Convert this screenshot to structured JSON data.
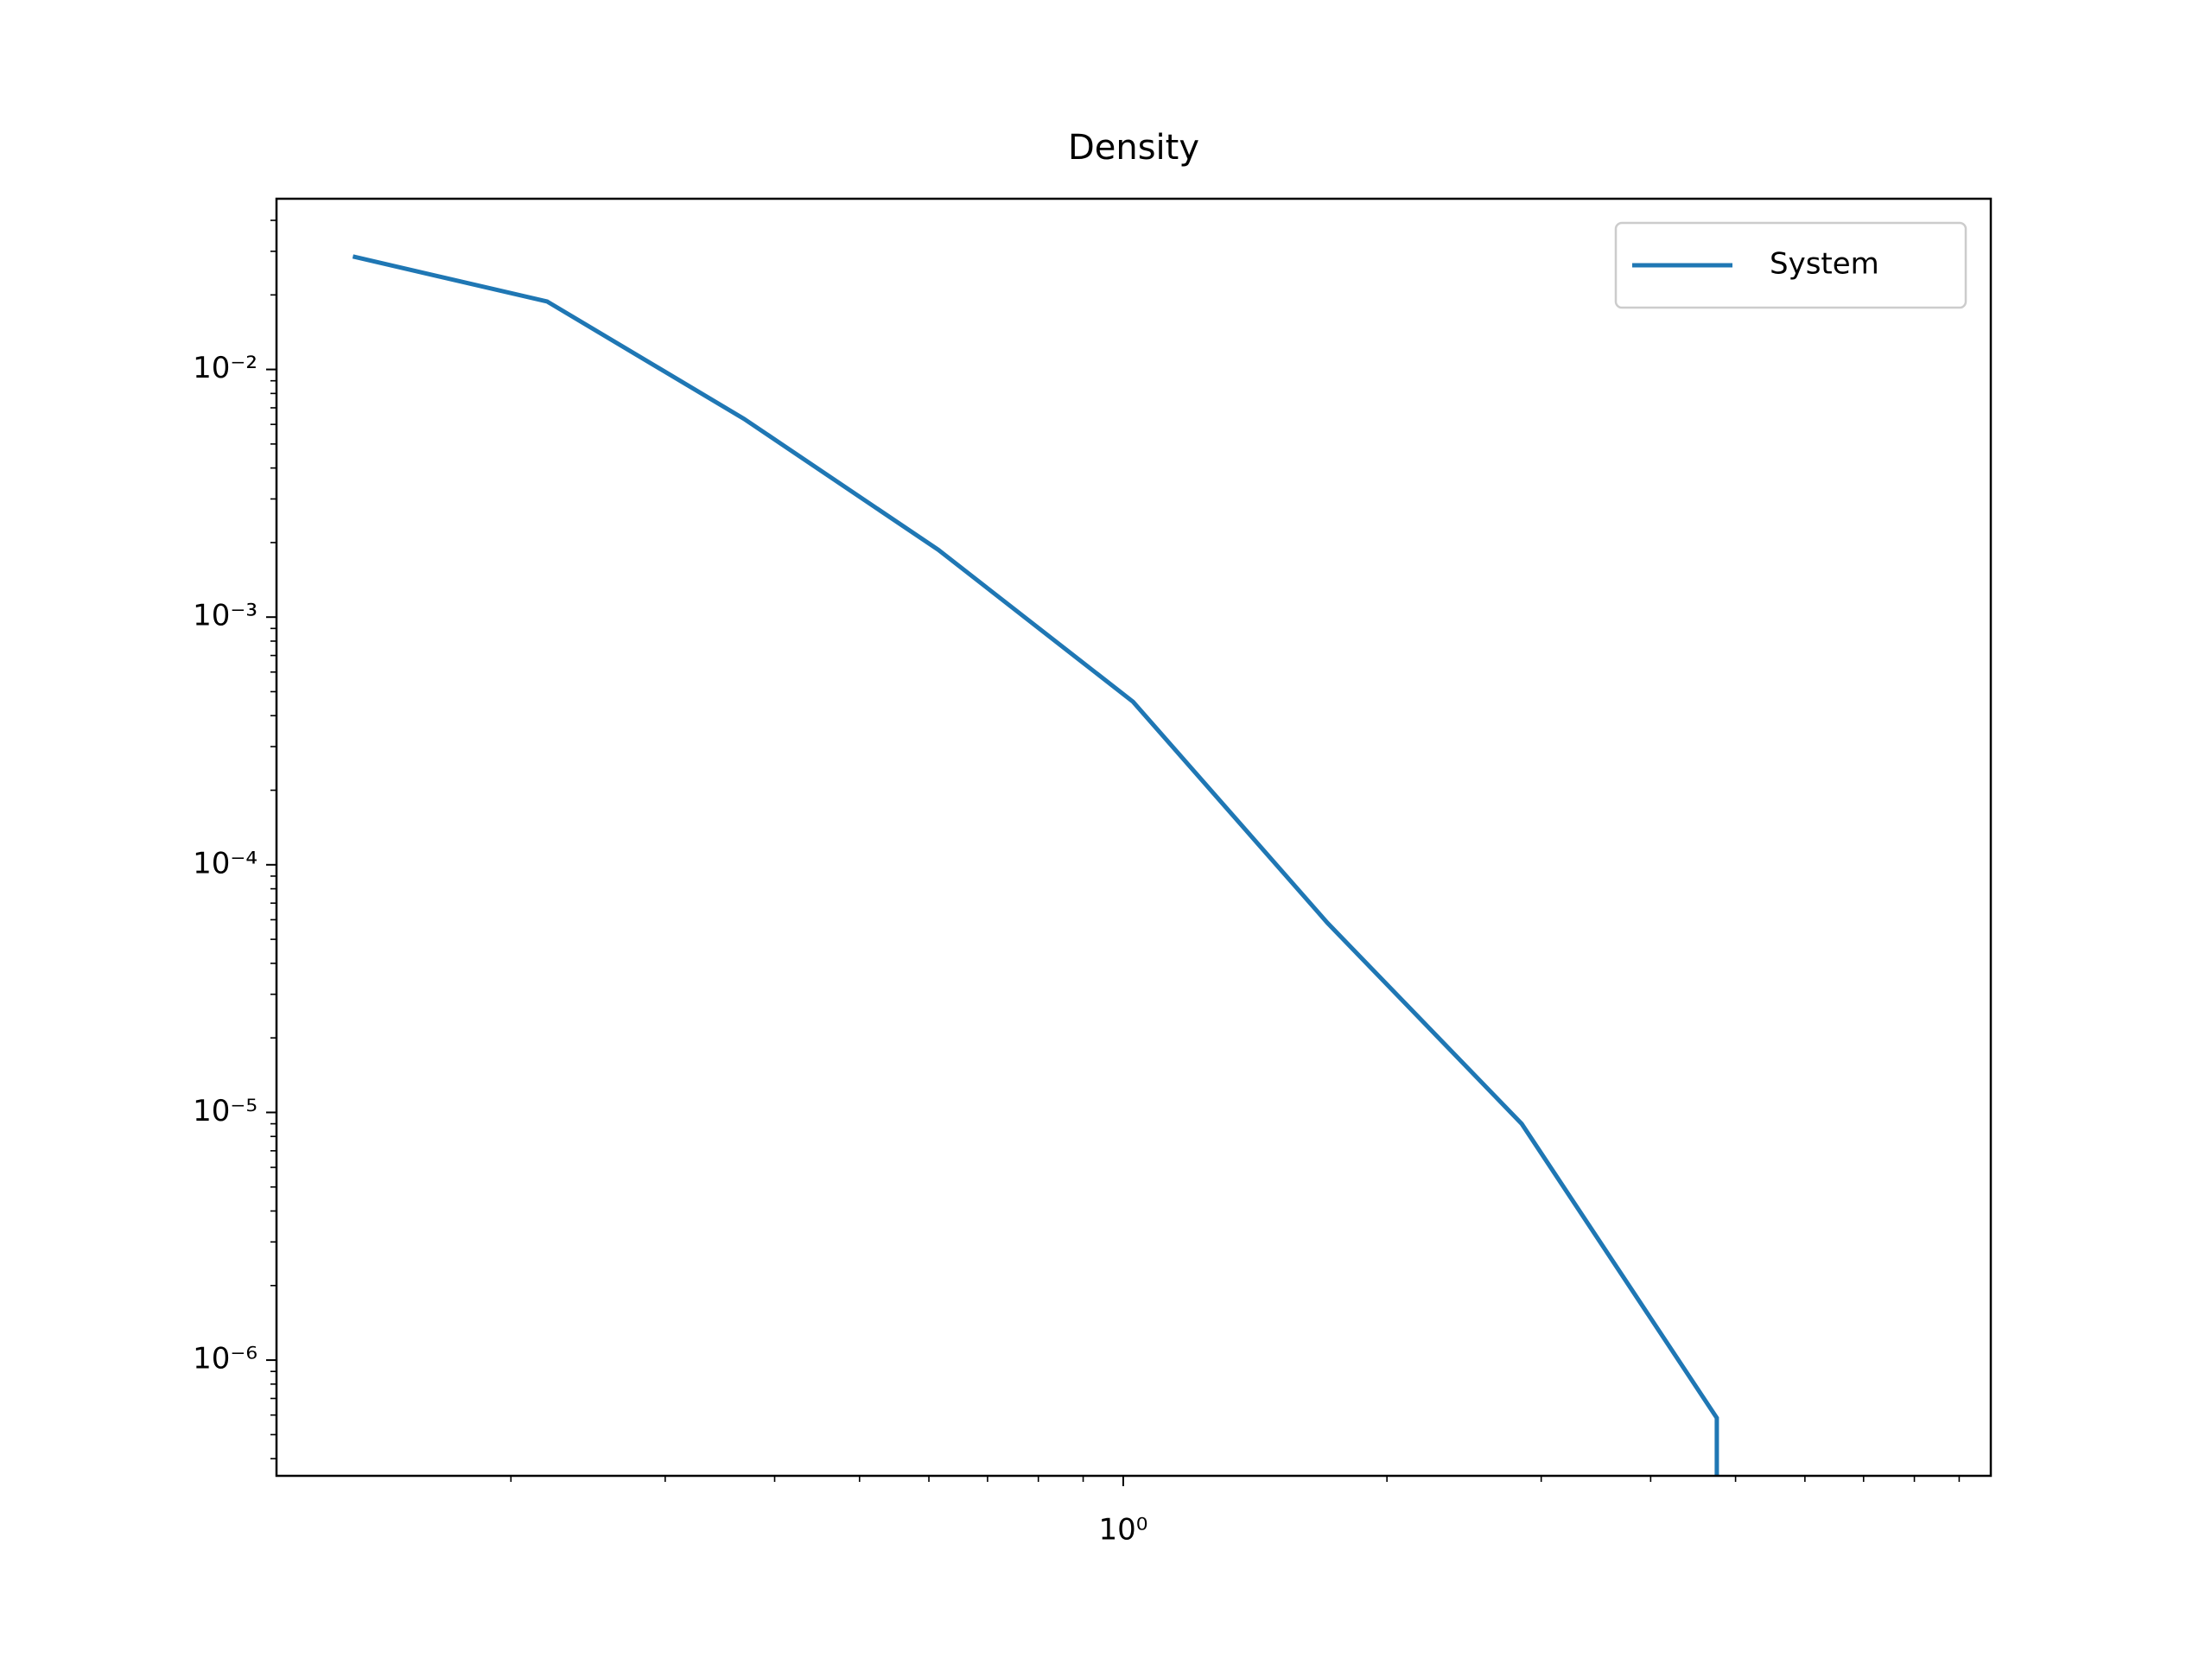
{
  "chart_data": {
    "type": "line",
    "title": "Density",
    "x": [
      0.132,
      0.22,
      0.369,
      0.615,
      1.026,
      1.71,
      2.85,
      4.76,
      4.76
    ],
    "series": [
      {
        "name": "System",
        "color": "#1f77b4",
        "values": [
          0.0286,
          0.0188,
          0.00632,
          0.00187,
          0.000455,
          5.83e-05,
          9e-06,
          5.84e-07,
          0
        ]
      }
    ],
    "xscale": "log",
    "yscale": "log",
    "xlim": [
      0.108,
      9.78
    ],
    "ylim": [
      0.0489,
      3.41e-07
    ],
    "xticks": [
      {
        "value": 1,
        "label": "10⁰"
      }
    ],
    "yticks": [
      {
        "value": 0.01,
        "label": "10⁻²"
      },
      {
        "value": 0.001,
        "label": "10⁻³"
      },
      {
        "value": 0.0001,
        "label": "10⁻⁴"
      },
      {
        "value": 1e-05,
        "label": "10⁻⁵"
      },
      {
        "value": 1e-06,
        "label": "10⁻⁶"
      }
    ],
    "grid": false,
    "legend": "upper right"
  }
}
